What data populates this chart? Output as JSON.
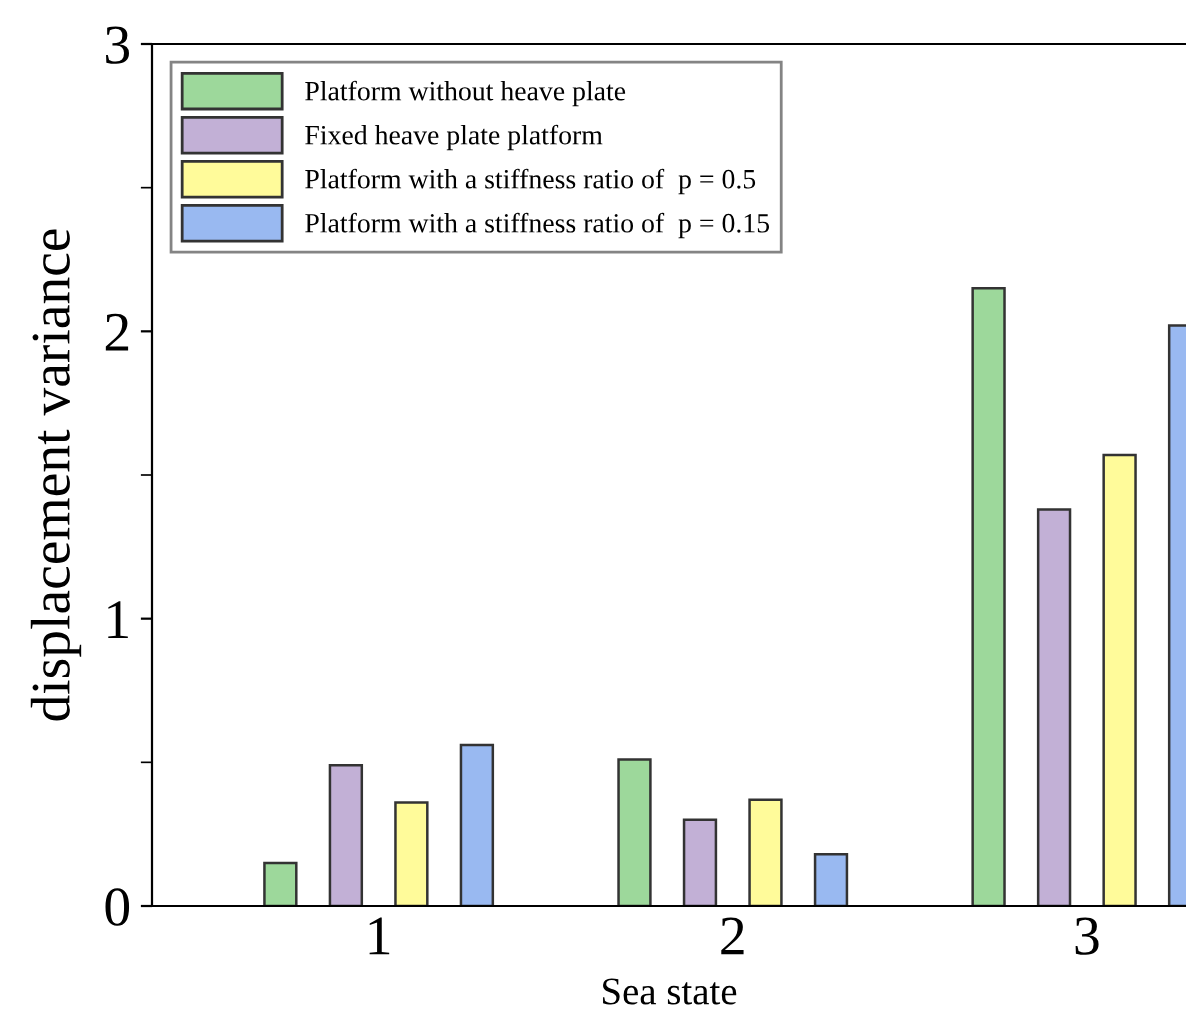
{
  "chart_data": {
    "type": "bar",
    "xlabel": "Sea state",
    "ylabel": "displacement variance",
    "categories": [
      "1",
      "2",
      "3"
    ],
    "series": [
      {
        "name": "Platform without heave plate",
        "color": "#9dd89b",
        "values": [
          0.15,
          0.51,
          2.15
        ]
      },
      {
        "name": "Fixed heave plate platform",
        "color": "#c2b0d6",
        "values": [
          0.49,
          0.3,
          1.38
        ]
      },
      {
        "name": "Platform with a stiffness ratio of  p = 0.5",
        "color": "#fffb9a",
        "values": [
          0.36,
          0.37,
          1.57
        ]
      },
      {
        "name": "Platform with a stiffness ratio of  p = 0.15",
        "color": "#99b9f1",
        "values": [
          0.56,
          0.18,
          2.02
        ]
      }
    ],
    "ylim": [
      0,
      3
    ],
    "yticks": [
      0,
      1,
      2,
      3
    ],
    "grid": false,
    "legend": "top left"
  }
}
